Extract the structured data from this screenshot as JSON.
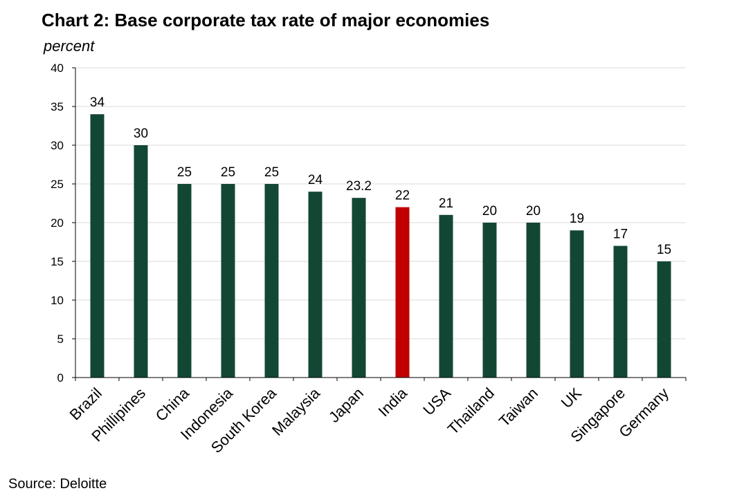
{
  "title": "Chart 2: Base corporate tax rate of major economies",
  "unit_label": "percent",
  "source": "Source: Deloitte",
  "colors": {
    "bar_default": "#124734",
    "bar_highlight": "#C00000",
    "gridline": "#D9D9D9",
    "axis": "#000000"
  },
  "chart_data": {
    "type": "bar",
    "title": "Chart 2: Base corporate tax rate of major economies",
    "xlabel": "",
    "ylabel": "percent",
    "ylim": [
      0,
      40
    ],
    "yticks": [
      0,
      5,
      10,
      15,
      20,
      25,
      30,
      35,
      40
    ],
    "grid": true,
    "legend": "none",
    "highlight_category": "India",
    "categories": [
      "Brazil",
      "Phillipines",
      "China",
      "Indonesia",
      "South Korea",
      "Malaysia",
      "Japan",
      "India",
      "USA",
      "Thailand",
      "Taiwan",
      "UK",
      "Singapore",
      "Germany"
    ],
    "values": [
      34,
      30,
      25,
      25,
      25,
      24,
      23.2,
      22,
      21,
      20,
      20,
      19,
      17,
      15
    ],
    "value_labels": [
      "34",
      "30",
      "25",
      "25",
      "25",
      "24",
      "23.2",
      "22",
      "21",
      "20",
      "20",
      "19",
      "17",
      "15"
    ]
  }
}
